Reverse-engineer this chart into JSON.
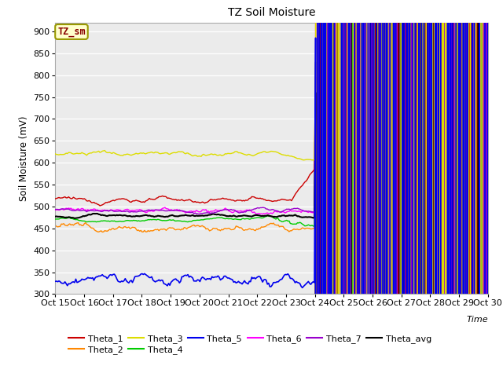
{
  "title": "TZ Soil Moisture",
  "ylabel": "Soil Moisture (mV)",
  "xlabel": "Time",
  "ylim": [
    300,
    920
  ],
  "yticks": [
    300,
    350,
    400,
    450,
    500,
    550,
    600,
    650,
    700,
    750,
    800,
    850,
    900
  ],
  "x_labels": [
    "Oct 15",
    "Oct 16",
    "Oct 17",
    "Oct 18",
    "Oct 19",
    "Oct 20",
    "Oct 21",
    "Oct 22",
    "Oct 23",
    "Oct 24",
    "Oct 25",
    "Oct 26",
    "Oct 27",
    "Oct 28",
    "Oct 29",
    "Oct 30"
  ],
  "legend_label": "TZ_sm",
  "series_colors": {
    "Theta_1": "#cc0000",
    "Theta_2": "#ff8800",
    "Theta_3": "#dddd00",
    "Theta_4": "#00cc00",
    "Theta_5": "#0000ee",
    "Theta_6": "#ff00ff",
    "Theta_7": "#9900cc",
    "Theta_avg": "#000000"
  },
  "background_color": "#ebebeb",
  "plot_bg_color": "#ebebeb",
  "legend_box_color": "#ffffcc",
  "legend_box_edge": "#999900",
  "legend_text_color": "#880000",
  "ncol_legend": 6
}
